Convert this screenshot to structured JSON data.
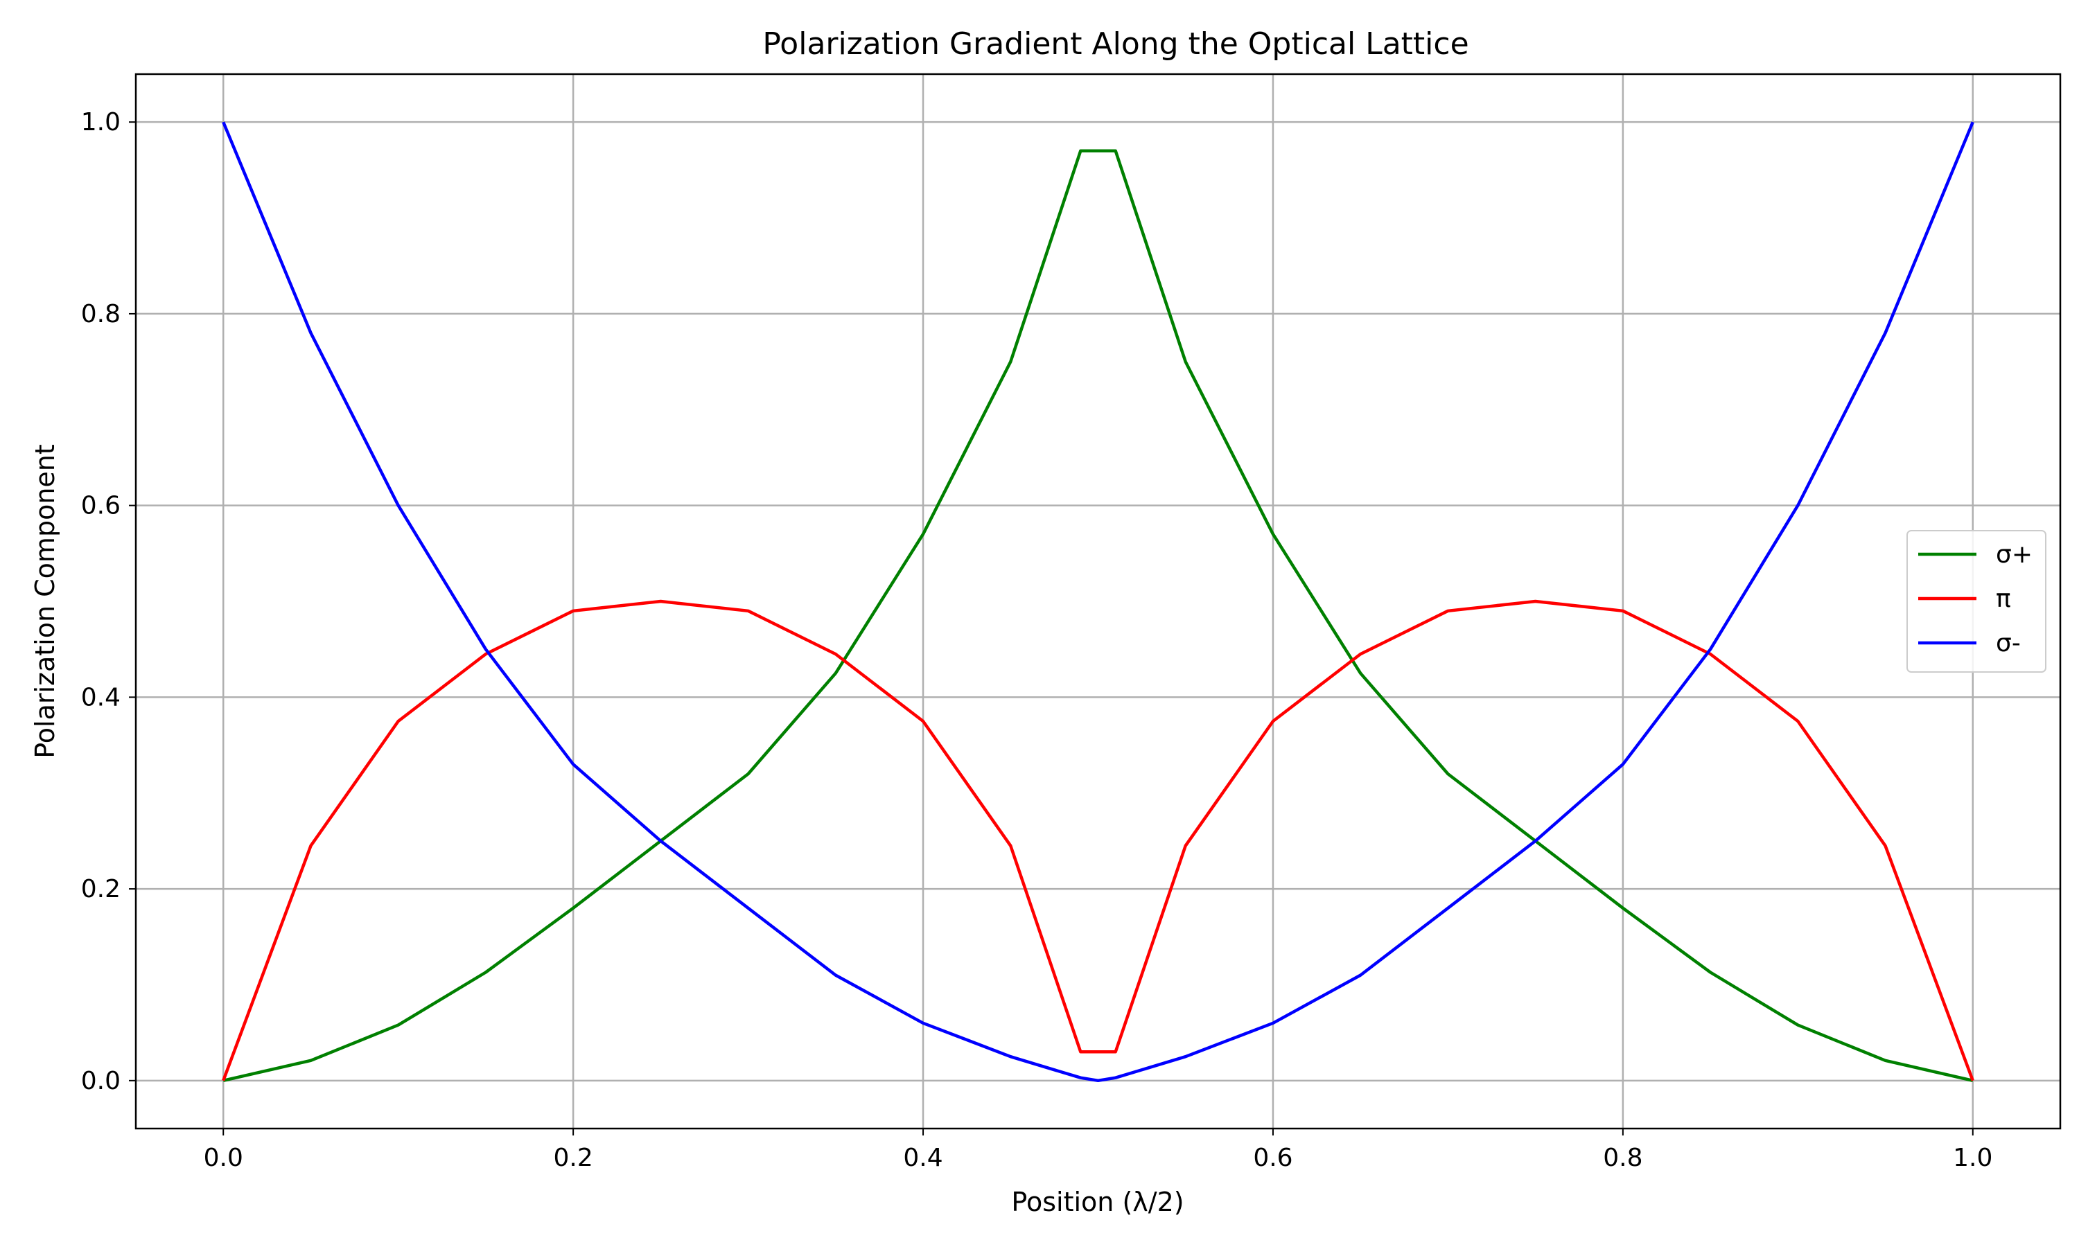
{
  "chart_data": {
    "type": "line",
    "title": "Polarization Gradient Along the Optical Lattice",
    "xlabel": "Position (λ/2)",
    "ylabel": "Polarization Component",
    "xlim": [
      -0.05,
      1.05
    ],
    "ylim": [
      -0.05,
      1.05
    ],
    "xticks": [
      0.0,
      0.2,
      0.4,
      0.6,
      0.8,
      1.0
    ],
    "xtick_labels": [
      "0.0",
      "0.2",
      "0.4",
      "0.6",
      "0.8",
      "1.0"
    ],
    "yticks": [
      0.0,
      0.2,
      0.4,
      0.6,
      0.8,
      1.0
    ],
    "ytick_labels": [
      "0.0",
      "0.2",
      "0.4",
      "0.6",
      "0.8",
      "1.0"
    ],
    "grid": true,
    "legend_position": "center-right",
    "x": [
      0.0,
      0.05,
      0.1,
      0.15,
      0.2,
      0.25,
      0.3,
      0.35,
      0.4,
      0.45,
      0.49,
      0.5,
      0.51,
      0.55,
      0.6,
      0.65,
      0.7,
      0.75,
      0.8,
      0.85,
      0.9,
      0.95,
      1.0
    ],
    "series": [
      {
        "name": "σ+",
        "color": "#008000",
        "values": [
          0.0,
          0.021,
          0.058,
          0.113,
          0.18,
          0.25,
          0.32,
          0.425,
          0.57,
          0.75,
          0.97,
          0.97,
          0.97,
          0.75,
          0.57,
          0.425,
          0.32,
          0.25,
          0.18,
          0.113,
          0.058,
          0.021,
          0.0
        ]
      },
      {
        "name": "π",
        "color": "#ff0000",
        "values": [
          0.0,
          0.245,
          0.375,
          0.445,
          0.49,
          0.5,
          0.49,
          0.445,
          0.375,
          0.245,
          0.03,
          0.03,
          0.03,
          0.245,
          0.375,
          0.445,
          0.49,
          0.5,
          0.49,
          0.445,
          0.375,
          0.245,
          0.0
        ]
      },
      {
        "name": "σ-",
        "color": "#0000ff",
        "values": [
          1.0,
          0.78,
          0.6,
          0.45,
          0.33,
          0.25,
          0.18,
          0.11,
          0.06,
          0.025,
          0.003,
          0.0,
          0.003,
          0.025,
          0.06,
          0.11,
          0.18,
          0.25,
          0.33,
          0.45,
          0.6,
          0.78,
          1.0
        ]
      }
    ]
  }
}
